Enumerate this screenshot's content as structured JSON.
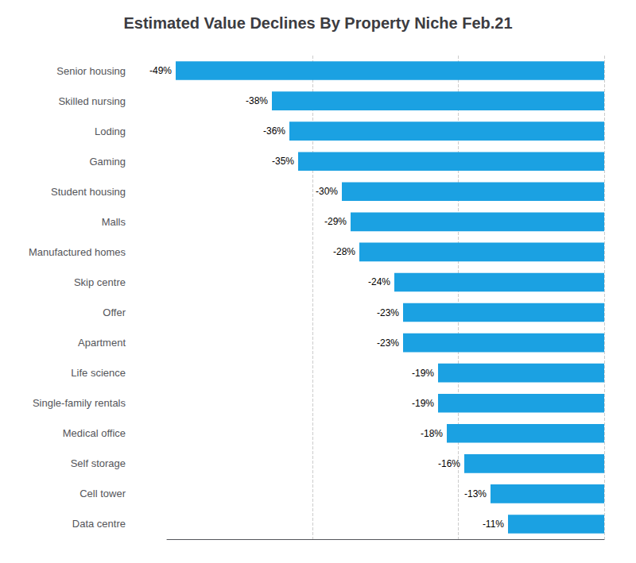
{
  "chart_data": {
    "type": "bar",
    "orientation": "horizontal",
    "title": "Estimated Value Declines By Property Niche Feb.21",
    "categories": [
      "Senior housing",
      "Skilled nursing",
      "Loding",
      "Gaming",
      "Student housing",
      "Malls",
      "Manufactured homes",
      "Skip centre",
      "Offer",
      "Apartment",
      "Life science",
      "Single-family rentals",
      "Medical office",
      "Self storage",
      "Cell tower",
      "Data centre"
    ],
    "values": [
      -49,
      -38,
      -36,
      -35,
      -30,
      -29,
      -28,
      -24,
      -23,
      -23,
      -19,
      -19,
      -18,
      -16,
      -13,
      -11
    ],
    "value_labels": [
      "-49%",
      "-38%",
      "-36%",
      "-35%",
      "-30%",
      "-29%",
      "-28%",
      "-24%",
      "-23%",
      "-23%",
      "-19%",
      "-19%",
      "-18%",
      "-16%",
      "-13%",
      "-11%"
    ],
    "data_labels": true,
    "color": "#1BA1E2",
    "xlim": [
      -50,
      0
    ],
    "xticks": [
      -33.33,
      -16.67,
      0
    ],
    "grid": true,
    "tick_labels": "y"
  }
}
